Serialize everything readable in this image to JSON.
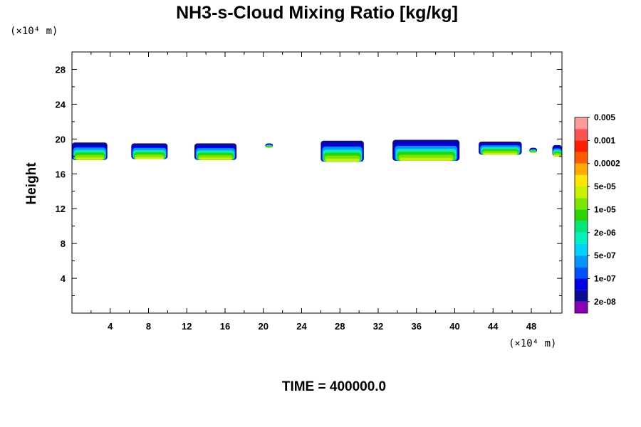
{
  "chart_data": {
    "type": "heatmap",
    "title": "NH3-s-Cloud Mixing Ratio [kg/kg]",
    "ylabel": "Height",
    "x_unit_label": "(×10⁴ m)",
    "y_unit_label": "(×10⁴ m)",
    "time_label": "TIME = 400000.0",
    "xlim": [
      0,
      51.2
    ],
    "ylim": [
      0,
      30
    ],
    "x_ticks": [
      4,
      8,
      12,
      16,
      20,
      24,
      28,
      32,
      36,
      40,
      44,
      48
    ],
    "y_ticks": [
      4,
      8,
      12,
      16,
      20,
      24,
      28
    ],
    "colorbar": {
      "colors": [
        "#8a00b4",
        "#0a0a96",
        "#0000e6",
        "#0050ff",
        "#0096ff",
        "#00d2ff",
        "#00f0c0",
        "#00e678",
        "#2ad400",
        "#7ae600",
        "#c8f000",
        "#ffe600",
        "#ffaa00",
        "#ff5a00",
        "#ff1e00",
        "#ff5050",
        "#ff9b9b"
      ],
      "labels": [
        "2e-08",
        "1e-07",
        "5e-07",
        "2e-06",
        "1e-05",
        "5e-05",
        "0.0002",
        "0.001",
        "0.005"
      ]
    },
    "clouds": [
      {
        "x0": 0.0,
        "x1": 3.7,
        "base": 17.6,
        "top": 19.6
      },
      {
        "x0": 6.2,
        "x1": 10.0,
        "base": 17.7,
        "top": 19.5
      },
      {
        "x0": 12.8,
        "x1": 17.2,
        "base": 17.6,
        "top": 19.5
      },
      {
        "x0": 20.2,
        "x1": 21.0,
        "base": 19.0,
        "top": 19.5
      },
      {
        "x0": 26.0,
        "x1": 30.5,
        "base": 17.4,
        "top": 19.8
      },
      {
        "x0": 33.5,
        "x1": 40.5,
        "base": 17.5,
        "top": 19.9
      },
      {
        "x0": 42.5,
        "x1": 47.0,
        "base": 18.2,
        "top": 19.7
      },
      {
        "x0": 47.8,
        "x1": 48.6,
        "base": 18.4,
        "top": 19.0
      },
      {
        "x0": 50.2,
        "x1": 51.2,
        "base": 18.0,
        "top": 19.3
      }
    ]
  }
}
